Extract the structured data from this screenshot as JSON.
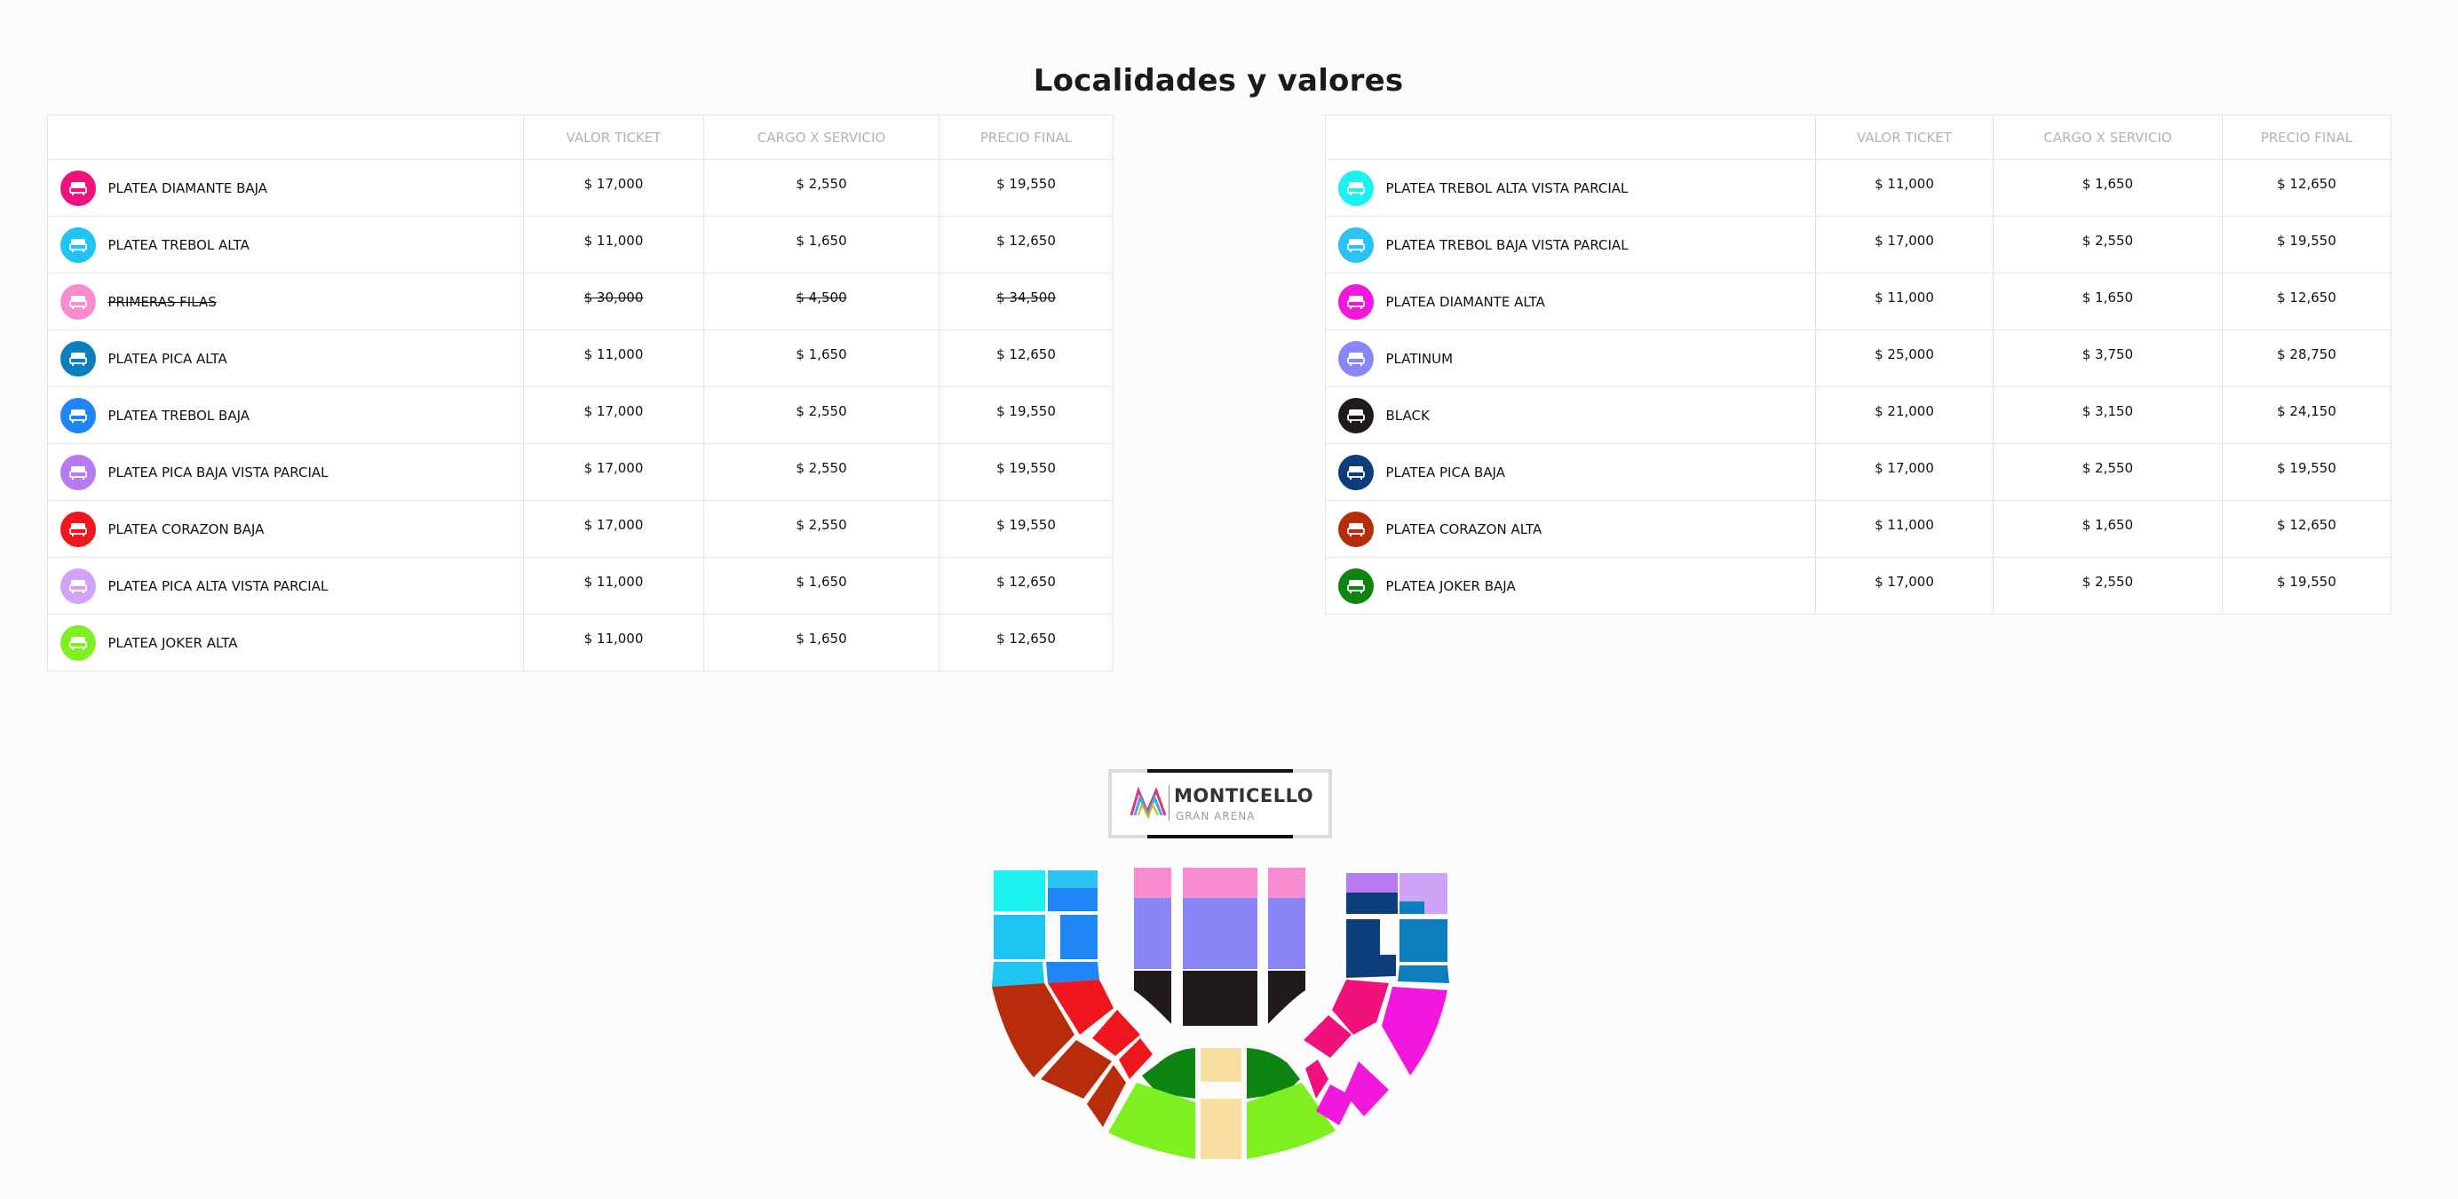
{
  "page": {
    "title": "Localidades y valores"
  },
  "table": {
    "headers": {
      "valor": "VALOR TICKET",
      "cargo": "CARGO X SERVICIO",
      "final": "PRECIO FINAL"
    }
  },
  "left_table": [
    {
      "name": "PLATEA DIAMANTE BAJA",
      "color": "#f0117c",
      "valor": "$ 17,000",
      "cargo": "$ 2,550",
      "final": "$ 19,550",
      "sold_out": false
    },
    {
      "name": "PLATEA TREBOL ALTA",
      "color": "#1ec4f2",
      "valor": "$ 11,000",
      "cargo": "$ 1,650",
      "final": "$ 12,650",
      "sold_out": false
    },
    {
      "name": "PRIMERAS FILAS",
      "color": "#f98bd0",
      "valor": "$ 30,000",
      "cargo": "$ 4,500",
      "final": "$ 34,500",
      "sold_out": true
    },
    {
      "name": "PLATEA PICA ALTA",
      "color": "#0b7fbd",
      "valor": "$ 11,000",
      "cargo": "$ 1,650",
      "final": "$ 12,650",
      "sold_out": false
    },
    {
      "name": "PLATEA TREBOL BAJA",
      "color": "#1f86f5",
      "valor": "$ 17,000",
      "cargo": "$ 2,550",
      "final": "$ 19,550",
      "sold_out": false
    },
    {
      "name": "PLATEA PICA BAJA VISTA PARCIAL",
      "color": "#b77af0",
      "valor": "$ 17,000",
      "cargo": "$ 2,550",
      "final": "$ 19,550",
      "sold_out": false
    },
    {
      "name": "PLATEA CORAZON BAJA",
      "color": "#f0161e",
      "valor": "$ 17,000",
      "cargo": "$ 2,550",
      "final": "$ 19,550",
      "sold_out": false
    },
    {
      "name": "PLATEA PICA ALTA VISTA PARCIAL",
      "color": "#cfa3f6",
      "valor": "$ 11,000",
      "cargo": "$ 1,650",
      "final": "$ 12,650",
      "sold_out": false
    },
    {
      "name": "PLATEA JOKER ALTA",
      "color": "#7ef021",
      "valor": "$ 11,000",
      "cargo": "$ 1,650",
      "final": "$ 12,650",
      "sold_out": false
    }
  ],
  "right_table": [
    {
      "name": "PLATEA TREBOL ALTA VISTA PARCIAL",
      "color": "#1cf1f1",
      "valor": "$ 11,000",
      "cargo": "$ 1,650",
      "final": "$ 12,650",
      "sold_out": false
    },
    {
      "name": "PLATEA TREBOL BAJA VISTA PARCIAL",
      "color": "#2bc3f2",
      "valor": "$ 17,000",
      "cargo": "$ 2,550",
      "final": "$ 19,550",
      "sold_out": false
    },
    {
      "name": "PLATEA DIAMANTE ALTA",
      "color": "#f217dc",
      "valor": "$ 11,000",
      "cargo": "$ 1,650",
      "final": "$ 12,650",
      "sold_out": false
    },
    {
      "name": "PLATINUM",
      "color": "#8a86f7",
      "valor": "$ 25,000",
      "cargo": "$ 3,750",
      "final": "$ 28,750",
      "sold_out": false
    },
    {
      "name": "BLACK",
      "color": "#201a1a",
      "valor": "$ 21,000",
      "cargo": "$ 3,150",
      "final": "$ 24,150",
      "sold_out": false
    },
    {
      "name": "PLATEA PICA BAJA",
      "color": "#0e3d7c",
      "valor": "$ 17,000",
      "cargo": "$ 2,550",
      "final": "$ 19,550",
      "sold_out": false
    },
    {
      "name": "PLATEA CORAZON ALTA",
      "color": "#b72d0c",
      "valor": "$ 11,000",
      "cargo": "$ 1,650",
      "final": "$ 12,650",
      "sold_out": false
    },
    {
      "name": "PLATEA JOKER BAJA",
      "color": "#0e8412",
      "valor": "$ 17,000",
      "cargo": "$ 2,550",
      "final": "$ 19,550",
      "sold_out": false
    }
  ],
  "logo": {
    "main": "MONTICELLO",
    "sub": "GRAN ARENA"
  },
  "icons": {
    "row_icon": "seat-icon",
    "logo_icon": "monticello-logo-mark"
  }
}
